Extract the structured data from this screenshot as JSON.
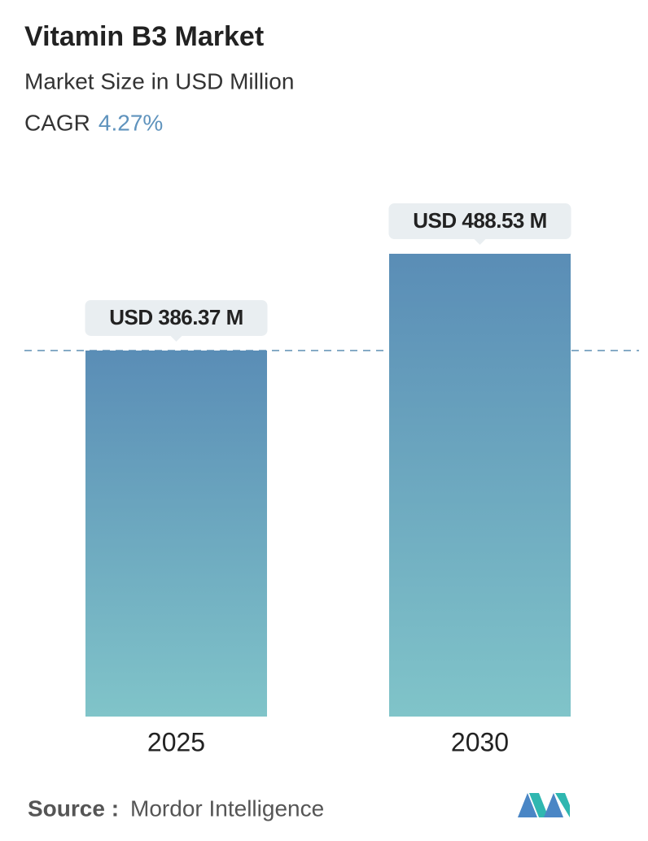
{
  "chart_data": {
    "type": "bar",
    "title": "Vitamin B3 Market",
    "subtitle": "Market Size in USD Million",
    "cagr_label": "CAGR",
    "cagr": "4.27%",
    "categories": [
      "2025",
      "2030"
    ],
    "values": [
      386.37,
      488.53
    ],
    "value_labels": [
      "USD 386.37 M",
      "USD 488.53 M"
    ],
    "color": [
      "#5a8db6",
      "#80c4c9"
    ],
    "source_label": "Source :",
    "source": "Mordor Intelligence"
  }
}
